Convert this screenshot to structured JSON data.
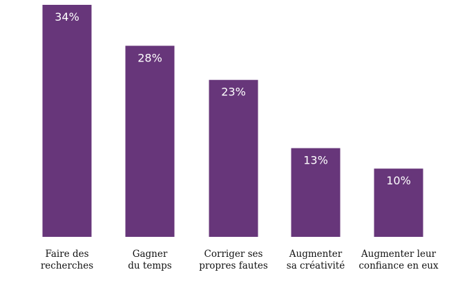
{
  "chart_data": {
    "type": "bar",
    "title": "",
    "xlabel": "",
    "ylabel": "",
    "ylim": [
      0,
      34
    ],
    "grid": false,
    "categories": [
      [
        "Faire des",
        "recherches"
      ],
      [
        "Gagner",
        "du temps"
      ],
      [
        "Corriger ses",
        "propres fautes"
      ],
      [
        "Augmenter",
        "sa créativité"
      ],
      [
        "Augmenter leur",
        "confiance en eux"
      ]
    ],
    "values": [
      34,
      28,
      23,
      13,
      10
    ],
    "value_labels": [
      "34%",
      "28%",
      "23%",
      "13%",
      "10%"
    ],
    "colors": {
      "bar": "#67367a",
      "value_text": "#ffffff",
      "category_text": "#111111"
    }
  }
}
